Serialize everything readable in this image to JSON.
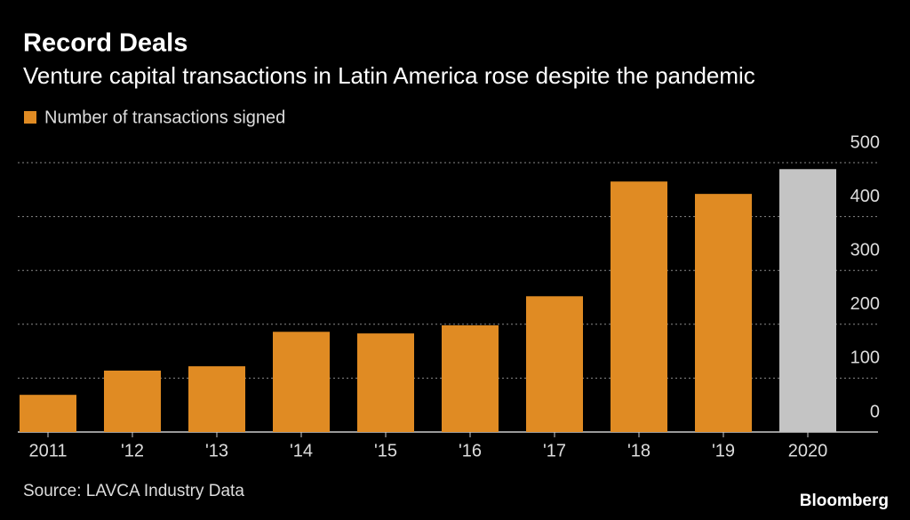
{
  "chart_data": {
    "type": "bar",
    "title": "Record Deals",
    "subtitle": "Venture capital transactions in Latin America rose despite the pandemic",
    "categories": [
      "2011",
      "'12",
      "'13",
      "'14",
      "'15",
      "'16",
      "'17",
      "'18",
      "'19",
      "2020"
    ],
    "series": [
      {
        "name": "Number of transactions signed",
        "color": "#e08b23",
        "colors": [
          "#e08b23",
          "#e08b23",
          "#e08b23",
          "#e08b23",
          "#e08b23",
          "#e08b23",
          "#e08b23",
          "#e08b23",
          "#e08b23",
          "#c4c4c4"
        ],
        "values": [
          69,
          114,
          122,
          186,
          183,
          198,
          252,
          465,
          442,
          488
        ]
      }
    ],
    "ylim": [
      0,
      500
    ],
    "yticks": [
      0,
      100,
      200,
      300,
      400,
      500
    ],
    "grid": true,
    "source": "Source: LAVCA Industry Data",
    "brand": "Bloomberg"
  }
}
